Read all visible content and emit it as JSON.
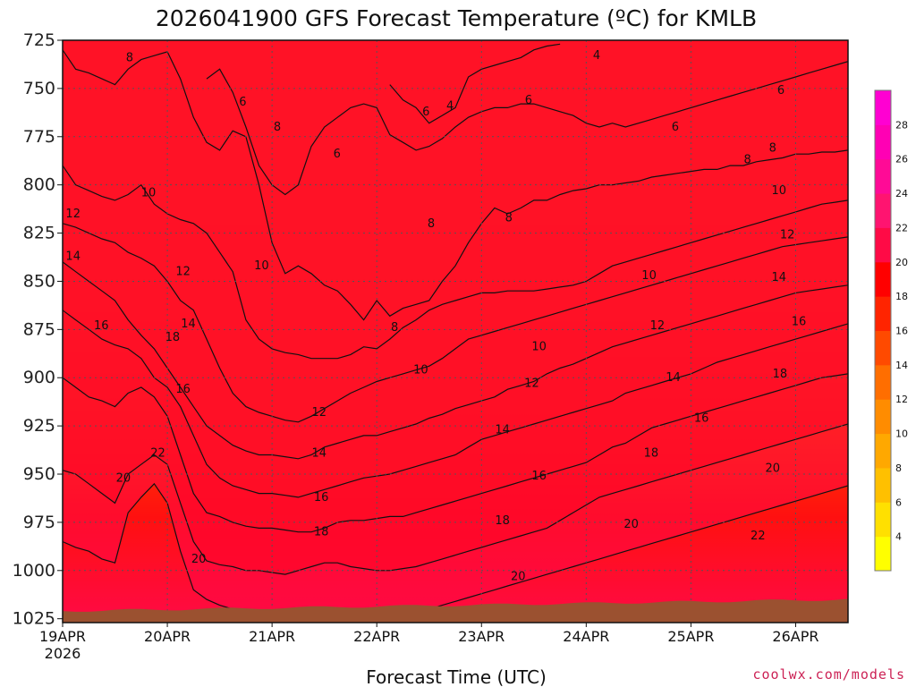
{
  "chart_data": {
    "type": "heatmap",
    "title": "2026041900 GFS Forecast Temperature (ºC) for KMLB",
    "xlabel": "Forecast Time (UTC)",
    "ylabel": "Pressure (hPa)",
    "y_ticks": [
      "725",
      "750",
      "775",
      "800",
      "825",
      "850",
      "875",
      "900",
      "925",
      "950",
      "975",
      "1000",
      "1025"
    ],
    "y_range": [
      725,
      1027
    ],
    "x_ticks": [
      {
        "label": "19APR",
        "sub": "2026",
        "day": 0
      },
      {
        "label": "20APR",
        "day": 1
      },
      {
        "label": "21APR",
        "day": 2
      },
      {
        "label": "22APR",
        "day": 3
      },
      {
        "label": "23APR",
        "day": 4
      },
      {
        "label": "24APR",
        "day": 5
      },
      {
        "label": "25APR",
        "day": 6
      },
      {
        "label": "26APR",
        "day": 7
      }
    ],
    "x_range_days": [
      0,
      7.5
    ],
    "colorbar": {
      "levels": [
        4,
        6,
        8,
        10,
        12,
        14,
        16,
        18,
        20,
        22,
        24,
        26,
        28
      ],
      "colors": [
        "#ffff00",
        "#ffe000",
        "#ffc000",
        "#ffa800",
        "#ff8c00",
        "#ff6e00",
        "#ff4a00",
        "#ff2400",
        "#ff0000",
        "#ff0a46",
        "#ff1470",
        "#ff0a96",
        "#ff00b4",
        "#ff00d2"
      ]
    },
    "freezing_levels_data": "temperature contours every 2 ºC",
    "isotherms": [
      {
        "level": 4,
        "pressure": [
          null,
          null,
          null,
          null,
          null,
          null,
          null,
          null,
          null,
          null,
          null,
          null,
          null,
          null,
          null,
          null,
          null,
          null,
          null,
          null,
          null,
          null,
          null,
          null,
          null,
          748,
          756,
          760,
          768,
          764,
          760,
          744,
          740,
          738,
          736,
          734,
          730,
          728,
          727,
          null,
          null,
          null,
          null,
          null,
          null,
          null,
          null,
          null,
          null,
          null,
          null,
          null,
          null,
          null,
          null,
          null,
          null,
          null,
          null,
          null,
          null
        ]
      },
      {
        "level": 6,
        "pressure": [
          null,
          null,
          null,
          null,
          null,
          null,
          null,
          null,
          null,
          null,
          null,
          745,
          740,
          752,
          770,
          790,
          800,
          805,
          800,
          780,
          770,
          765,
          760,
          758,
          760,
          774,
          778,
          782,
          780,
          776,
          770,
          765,
          762,
          760,
          760,
          758,
          758,
          760,
          762,
          764,
          768,
          770,
          768,
          770,
          768,
          766,
          764,
          762,
          760,
          758,
          756,
          754,
          752,
          750,
          748,
          746,
          744,
          742,
          740,
          738,
          736
        ]
      },
      {
        "level": 8,
        "pressure": [
          730,
          740,
          742,
          745,
          748,
          740,
          735,
          733,
          731,
          745,
          765,
          778,
          782,
          772,
          775,
          800,
          830,
          846,
          842,
          846,
          852,
          855,
          862,
          870,
          860,
          868,
          864,
          862,
          860,
          850,
          842,
          830,
          820,
          812,
          815,
          812,
          808,
          808,
          805,
          803,
          802,
          800,
          800,
          799,
          798,
          796,
          795,
          794,
          793,
          792,
          792,
          790,
          790,
          788,
          787,
          786,
          784,
          784,
          783,
          783,
          782
        ]
      },
      {
        "level": 10,
        "pressure": [
          790,
          800,
          803,
          806,
          808,
          805,
          800,
          810,
          815,
          818,
          820,
          825,
          835,
          845,
          870,
          880,
          885,
          887,
          888,
          890,
          890,
          890,
          888,
          884,
          885,
          880,
          874,
          870,
          865,
          862,
          860,
          858,
          856,
          856,
          855,
          855,
          855,
          854,
          853,
          852,
          850,
          846,
          842,
          840,
          838,
          836,
          834,
          832,
          830,
          828,
          826,
          824,
          822,
          820,
          818,
          816,
          814,
          812,
          810,
          809,
          808
        ]
      },
      {
        "level": 12,
        "pressure": [
          820,
          822,
          825,
          828,
          830,
          835,
          838,
          842,
          850,
          860,
          865,
          880,
          895,
          908,
          915,
          918,
          920,
          922,
          923,
          920,
          916,
          912,
          908,
          905,
          902,
          900,
          898,
          896,
          894,
          890,
          885,
          880,
          878,
          876,
          874,
          872,
          870,
          868,
          866,
          864,
          862,
          860,
          858,
          856,
          854,
          852,
          850,
          848,
          846,
          844,
          842,
          840,
          838,
          836,
          834,
          832,
          831,
          830,
          829,
          828,
          827
        ]
      },
      {
        "level": 14,
        "pressure": [
          840,
          845,
          850,
          855,
          860,
          870,
          878,
          885,
          895,
          905,
          915,
          925,
          930,
          935,
          938,
          940,
          940,
          941,
          942,
          940,
          936,
          934,
          932,
          930,
          930,
          928,
          926,
          924,
          921,
          919,
          916,
          914,
          912,
          910,
          906,
          904,
          902,
          898,
          895,
          893,
          890,
          887,
          884,
          882,
          880,
          878,
          876,
          874,
          872,
          870,
          868,
          866,
          864,
          862,
          860,
          858,
          856,
          855,
          854,
          853,
          852
        ]
      },
      {
        "level": 16,
        "pressure": [
          865,
          870,
          875,
          880,
          883,
          885,
          890,
          900,
          905,
          915,
          930,
          945,
          952,
          956,
          958,
          960,
          960,
          961,
          962,
          960,
          958,
          956,
          954,
          952,
          951,
          950,
          948,
          946,
          944,
          942,
          940,
          936,
          932,
          930,
          928,
          926,
          924,
          922,
          920,
          918,
          916,
          914,
          912,
          908,
          906,
          904,
          902,
          900,
          898,
          895,
          892,
          890,
          888,
          886,
          884,
          882,
          880,
          878,
          876,
          874,
          872
        ]
      },
      {
        "level": 18,
        "pressure": [
          900,
          905,
          910,
          912,
          915,
          908,
          905,
          910,
          920,
          940,
          960,
          970,
          972,
          975,
          977,
          978,
          978,
          979,
          980,
          980,
          978,
          975,
          974,
          974,
          973,
          972,
          972,
          970,
          968,
          966,
          964,
          962,
          960,
          958,
          956,
          954,
          952,
          950,
          948,
          946,
          944,
          940,
          936,
          934,
          930,
          926,
          924,
          922,
          920,
          918,
          916,
          914,
          912,
          910,
          908,
          906,
          904,
          902,
          900,
          899,
          898
        ]
      },
      {
        "level": 20,
        "pressure": [
          948,
          950,
          955,
          960,
          965,
          950,
          945,
          940,
          945,
          965,
          985,
          995,
          997,
          998,
          1000,
          1000,
          1001,
          1002,
          1000,
          998,
          996,
          996,
          998,
          999,
          1000,
          1000,
          999,
          998,
          996,
          994,
          992,
          990,
          988,
          986,
          984,
          982,
          980,
          978,
          974,
          970,
          966,
          962,
          960,
          958,
          956,
          954,
          952,
          950,
          948,
          946,
          944,
          942,
          940,
          938,
          936,
          934,
          932,
          930,
          928,
          926,
          924
        ]
      },
      {
        "level": 22,
        "pressure": [
          985,
          988,
          990,
          994,
          996,
          970,
          962,
          955,
          965,
          990,
          1010,
          1015,
          1018,
          1020,
          1022,
          1023,
          1024,
          1024,
          1024,
          1024,
          1022,
          1020,
          1020,
          1020,
          1021,
          1022,
          1022,
          1022,
          1020,
          1018,
          1016,
          1014,
          1012,
          1010,
          1008,
          1006,
          1004,
          1002,
          1000,
          998,
          996,
          994,
          992,
          990,
          988,
          986,
          984,
          982,
          980,
          978,
          976,
          974,
          972,
          970,
          968,
          966,
          964,
          962,
          960,
          958,
          956
        ]
      }
    ],
    "contour_labels": [
      {
        "text": "8",
        "day": 0.64,
        "p": 734
      },
      {
        "text": "6",
        "day": 1.72,
        "p": 757
      },
      {
        "text": "8",
        "day": 2.05,
        "p": 770
      },
      {
        "text": "6",
        "day": 2.62,
        "p": 784
      },
      {
        "text": "6",
        "day": 3.47,
        "p": 762
      },
      {
        "text": "4",
        "day": 3.7,
        "p": 759
      },
      {
        "text": "6",
        "day": 4.45,
        "p": 756
      },
      {
        "text": "4",
        "day": 5.1,
        "p": 733
      },
      {
        "text": "6",
        "day": 5.85,
        "p": 770
      },
      {
        "text": "6",
        "day": 6.86,
        "p": 751
      },
      {
        "text": "8",
        "day": 6.54,
        "p": 787
      },
      {
        "text": "8",
        "day": 6.78,
        "p": 781
      },
      {
        "text": "10",
        "day": 0.82,
        "p": 804
      },
      {
        "text": "8",
        "day": 3.52,
        "p": 820
      },
      {
        "text": "8",
        "day": 4.26,
        "p": 817
      },
      {
        "text": "10",
        "day": 6.84,
        "p": 803
      },
      {
        "text": "12",
        "day": 0.1,
        "p": 815
      },
      {
        "text": "14",
        "day": 0.1,
        "p": 837
      },
      {
        "text": "12",
        "day": 1.15,
        "p": 845
      },
      {
        "text": "10",
        "day": 1.9,
        "p": 842
      },
      {
        "text": "12",
        "day": 6.92,
        "p": 826
      },
      {
        "text": "8",
        "day": 3.17,
        "p": 874
      },
      {
        "text": "10",
        "day": 5.6,
        "p": 847
      },
      {
        "text": "14",
        "day": 6.84,
        "p": 848
      },
      {
        "text": "16",
        "day": 0.37,
        "p": 873
      },
      {
        "text": "14",
        "day": 1.2,
        "p": 872
      },
      {
        "text": "18",
        "day": 1.05,
        "p": 879
      },
      {
        "text": "10",
        "day": 3.42,
        "p": 896
      },
      {
        "text": "10",
        "day": 4.55,
        "p": 884
      },
      {
        "text": "12",
        "day": 5.68,
        "p": 873
      },
      {
        "text": "16",
        "day": 7.03,
        "p": 871
      },
      {
        "text": "16",
        "day": 1.15,
        "p": 906
      },
      {
        "text": "12",
        "day": 2.45,
        "p": 918
      },
      {
        "text": "12",
        "day": 4.48,
        "p": 903
      },
      {
        "text": "14",
        "day": 5.83,
        "p": 900
      },
      {
        "text": "18",
        "day": 6.85,
        "p": 898
      },
      {
        "text": "14",
        "day": 2.45,
        "p": 939
      },
      {
        "text": "14",
        "day": 4.2,
        "p": 927
      },
      {
        "text": "16",
        "day": 6.1,
        "p": 921
      },
      {
        "text": "22",
        "day": 0.91,
        "p": 939
      },
      {
        "text": "20",
        "day": 0.58,
        "p": 952
      },
      {
        "text": "16",
        "day": 2.47,
        "p": 962
      },
      {
        "text": "16",
        "day": 4.55,
        "p": 951
      },
      {
        "text": "18",
        "day": 5.62,
        "p": 939
      },
      {
        "text": "20",
        "day": 6.78,
        "p": 947
      },
      {
        "text": "18",
        "day": 2.47,
        "p": 980
      },
      {
        "text": "18",
        "day": 4.2,
        "p": 974
      },
      {
        "text": "20",
        "day": 5.43,
        "p": 976
      },
      {
        "text": "20",
        "day": 1.3,
        "p": 994
      },
      {
        "text": "22",
        "day": 6.64,
        "p": 982
      },
      {
        "text": "20",
        "day": 4.35,
        "p": 1003
      }
    ]
  },
  "credit": "coolwx.com/models",
  "colors": {
    "ground": "#9b5130",
    "credit": "#cc2255",
    "grid": "#555555"
  }
}
